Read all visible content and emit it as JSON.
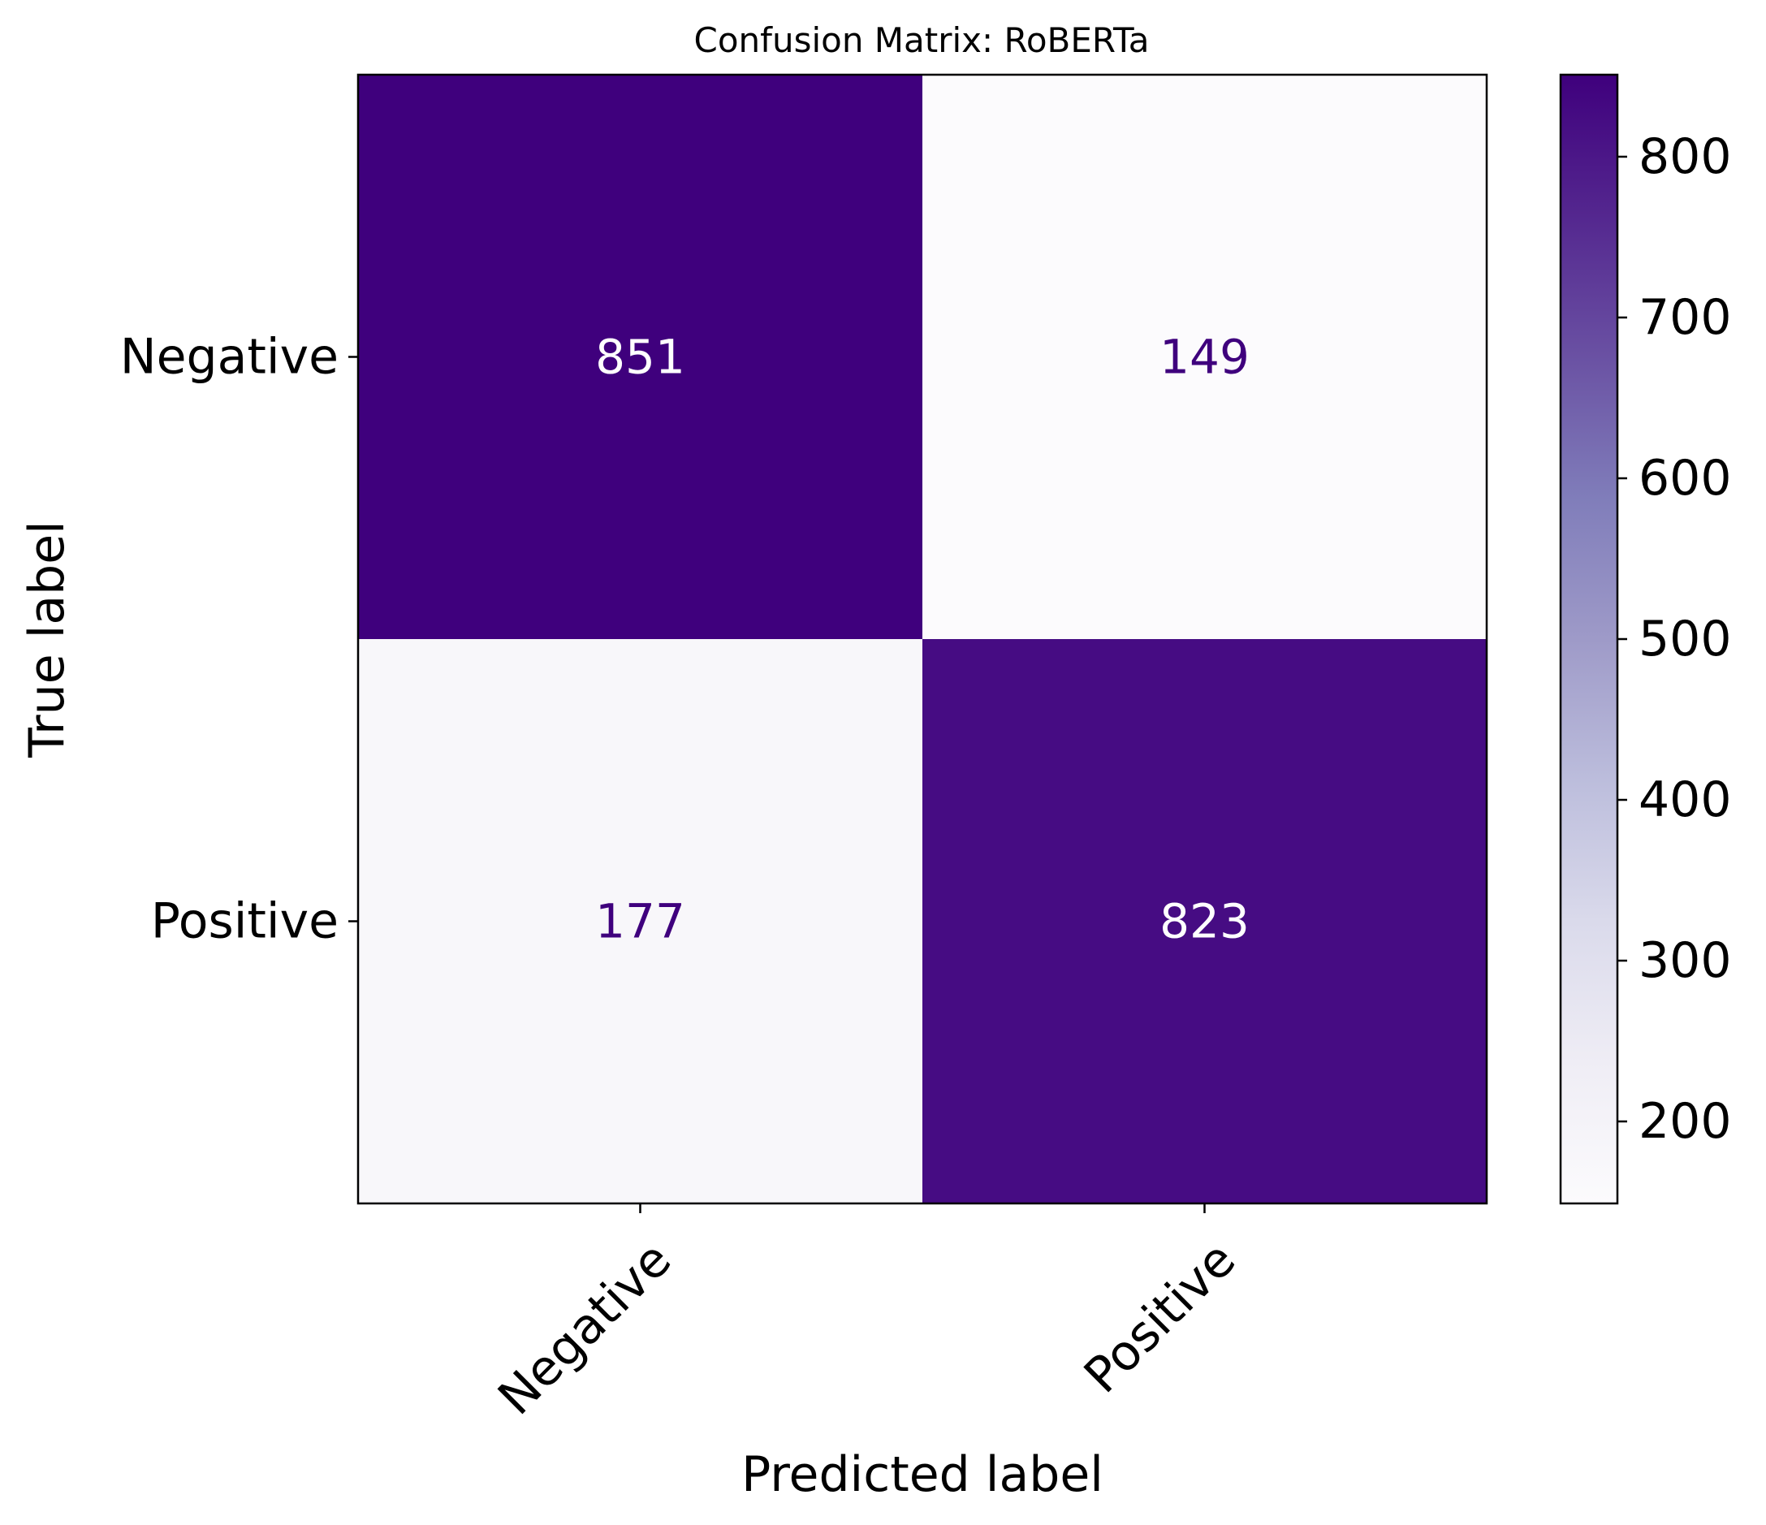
{
  "chart_data": {
    "type": "heatmap",
    "title": "Confusion Matrix: RoBERTa",
    "xlabel": "Predicted label",
    "ylabel": "True label",
    "x_categories": [
      "Negative",
      "Positive"
    ],
    "y_categories": [
      "Negative",
      "Positive"
    ],
    "values": [
      [
        851,
        149
      ],
      [
        177,
        823
      ]
    ],
    "colormap": "Purples",
    "colors": {
      "low": "#fcfbfd",
      "high": "#3f007d",
      "text_dark_cell": "#ffffff",
      "text_light_cell": "#3f007d"
    },
    "colorbar": {
      "min": 149,
      "max": 851,
      "ticks": [
        200,
        300,
        400,
        500,
        600,
        700,
        800
      ]
    }
  }
}
